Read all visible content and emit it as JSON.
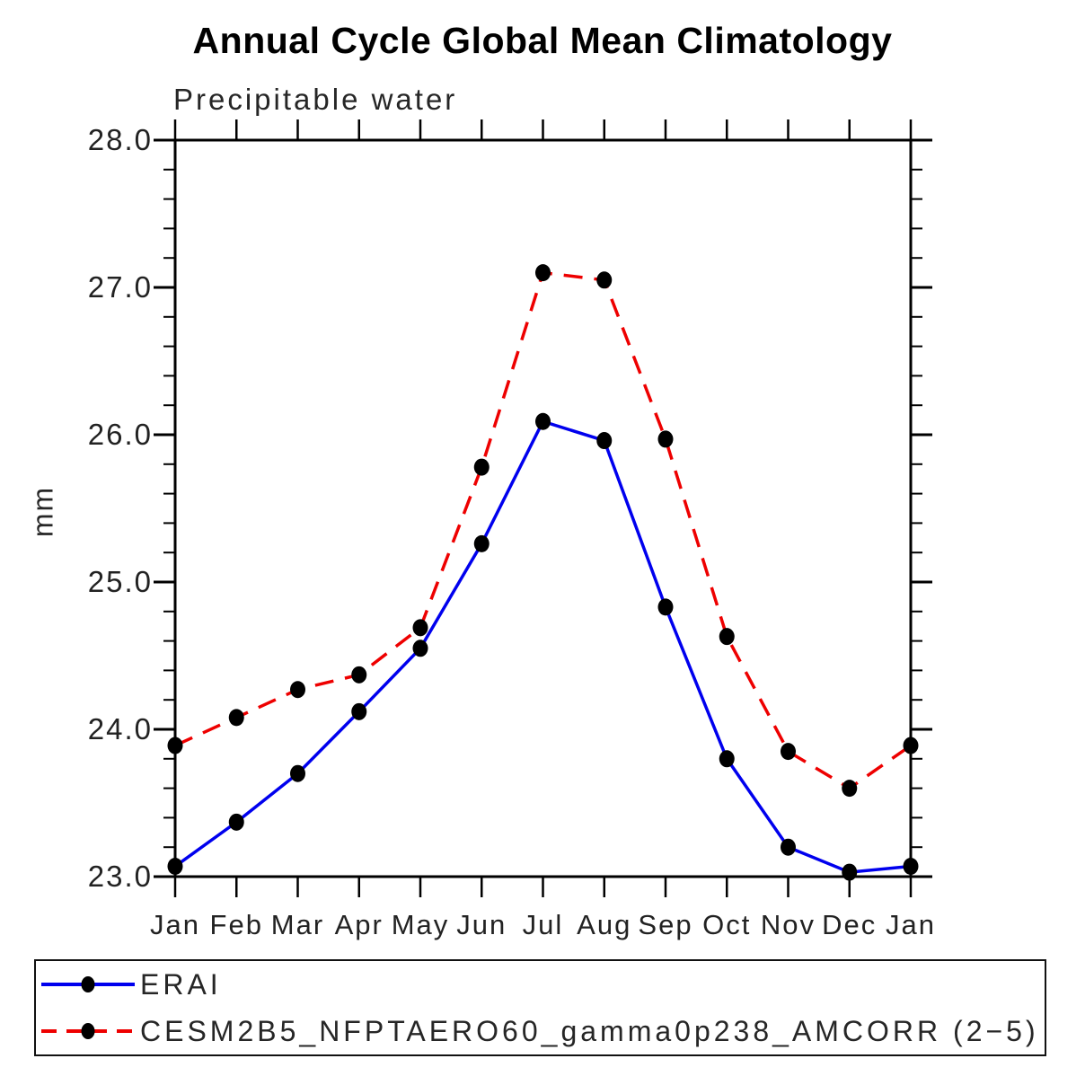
{
  "title": "Annual Cycle Global Mean Climatology",
  "subtitle": "Precipitable water",
  "y_axis_unit": "mm",
  "colors": {
    "erai_line": "#0000ee",
    "cesm_line": "#ee0000",
    "marker": "#000000",
    "axis": "#000000"
  },
  "chart_data": {
    "type": "line",
    "title": "Annual Cycle Global Mean Climatology",
    "subtitle": "Precipitable water",
    "ylabel": "mm",
    "xlabel": "",
    "grid": false,
    "legend_position": "bottom-box",
    "ylim": [
      23.0,
      28.0
    ],
    "y_major_step": 1.0,
    "y_minor_step": 0.2,
    "y_tick_labels": [
      "23.0",
      "24.0",
      "25.0",
      "26.0",
      "27.0",
      "28.0"
    ],
    "categories": [
      "Jan",
      "Feb",
      "Mar",
      "Apr",
      "May",
      "Jun",
      "Jul",
      "Aug",
      "Sep",
      "Oct",
      "Nov",
      "Dec",
      "Jan"
    ],
    "series": [
      {
        "name": "ERAI",
        "color": "#0000ee",
        "style": "solid",
        "marker": "circle",
        "marker_color": "#000000",
        "values": [
          23.07,
          23.37,
          23.7,
          24.12,
          24.55,
          25.26,
          26.09,
          25.96,
          24.83,
          23.8,
          23.2,
          23.03,
          23.07
        ]
      },
      {
        "name": "CESM2B5_NFPTAERO60_gamma0p238_AMCORR (2−5)",
        "color": "#ee0000",
        "style": "dashed",
        "marker": "circle",
        "marker_color": "#000000",
        "values": [
          23.89,
          24.08,
          24.27,
          24.37,
          24.69,
          25.78,
          27.1,
          27.05,
          25.97,
          24.63,
          23.85,
          23.6,
          23.89
        ]
      }
    ]
  }
}
